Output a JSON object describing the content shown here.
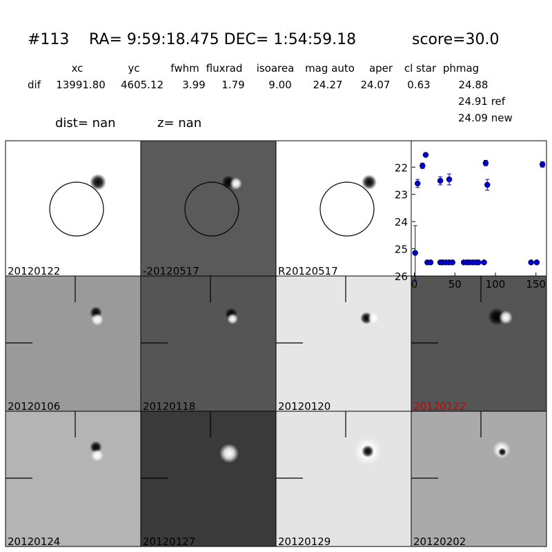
{
  "header": {
    "id": "#113",
    "coords": "RA= 9:59:18.475 DEC= 1:54:59.18",
    "score": "score=30.0",
    "columns": [
      "xc",
      "yc",
      "fwhm",
      "fluxrad",
      "isoarea",
      "mag auto",
      "aper",
      "cl star",
      "phmag"
    ],
    "row": {
      "label": "dif",
      "values": [
        "13991.80",
        "4605.12",
        "3.99",
        "1.79",
        "9.00",
        "24.27",
        "24.07",
        "0.63",
        "24.88"
      ]
    },
    "ref": "24.91 ref",
    "new": "24.09 new",
    "dist": "dist=   nan",
    "z": "z=   nan"
  },
  "panels": [
    {
      "label": "20120122"
    },
    {
      "label": "-20120517"
    },
    {
      "label": "R20120517"
    },
    {
      "label": "20120106"
    },
    {
      "label": "20120118"
    },
    {
      "label": "20120120"
    },
    {
      "label": "20120122",
      "color": "#cc0000"
    },
    {
      "label": "20120124"
    },
    {
      "label": "20120127"
    },
    {
      "label": "20120129"
    },
    {
      "label": "20120202"
    }
  ],
  "chart_data": {
    "type": "errorbar",
    "color": "#0000cc",
    "x": [
      1,
      4,
      10,
      14,
      16,
      20,
      32,
      32,
      35,
      39,
      43,
      43,
      47,
      61,
      65,
      68,
      72,
      76,
      79,
      86,
      88,
      90,
      144,
      151,
      158
    ],
    "series": [
      {
        "values": [
          25.15,
          22.6,
          21.95,
          21.55,
          25.5,
          25.5,
          22.5,
          25.5,
          25.5,
          25.5,
          22.45,
          25.5,
          25.5,
          25.5,
          25.5,
          25.5,
          25.5,
          25.5,
          25.5,
          25.5,
          21.85,
          22.65,
          25.5,
          25.5,
          21.9
        ],
        "errors": [
          1.0,
          0.15,
          0.1,
          0.05,
          null,
          null,
          0.15,
          null,
          null,
          null,
          0.2,
          null,
          null,
          null,
          null,
          null,
          null,
          null,
          null,
          null,
          0.1,
          0.2,
          null,
          null,
          0.1
        ]
      }
    ],
    "xlim": [
      -3,
      163
    ],
    "ylim": [
      26,
      21.03
    ],
    "xticks": [
      0,
      50,
      100,
      150
    ],
    "yticks": [
      22,
      23,
      24,
      25,
      26
    ]
  }
}
